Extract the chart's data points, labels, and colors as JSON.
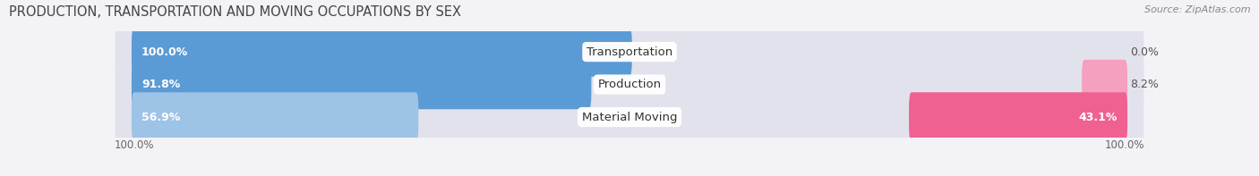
{
  "title": "PRODUCTION, TRANSPORTATION AND MOVING OCCUPATIONS BY SEX",
  "source": "Source: ZipAtlas.com",
  "categories": [
    "Transportation",
    "Production",
    "Material Moving"
  ],
  "male_values": [
    100.0,
    91.8,
    56.9
  ],
  "female_values": [
    0.0,
    8.2,
    43.1
  ],
  "male_color_strong": "#5b9bd5",
  "male_color_light": "#9dc3e6",
  "female_color_strong": "#f06090",
  "female_color_light": "#f4a0be",
  "bg_color": "#f2f2f7",
  "row_bg_color": "#e2e2ec",
  "title_fontsize": 10.5,
  "label_fontsize": 9.5,
  "value_fontsize": 9,
  "tick_fontsize": 8.5,
  "source_fontsize": 8,
  "legend_fontsize": 9
}
